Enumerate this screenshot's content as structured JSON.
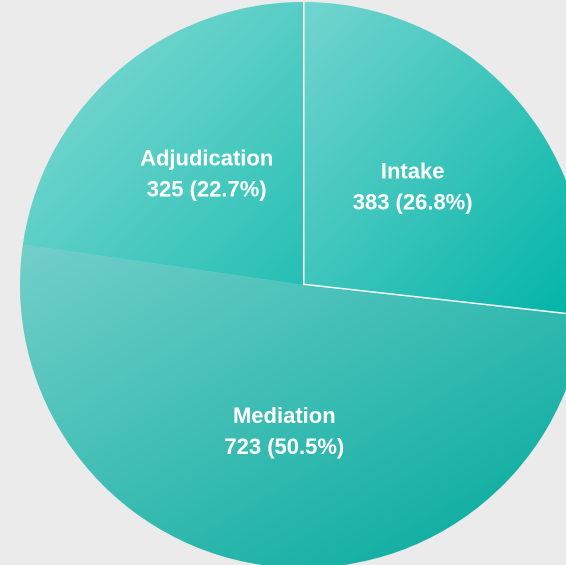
{
  "chart_data": {
    "type": "pie",
    "categories": [
      "Intake",
      "Mediation",
      "Adjudication"
    ],
    "values": [
      383,
      723,
      325
    ],
    "value_labels": [
      "383 (26.8%)",
      "723 (50.5%)",
      "325 (22.7%)"
    ],
    "colors": [
      "#00b3a7",
      "#00a89c",
      "#26bfb4"
    ],
    "start_angle": 0,
    "direction": "clockwise"
  }
}
